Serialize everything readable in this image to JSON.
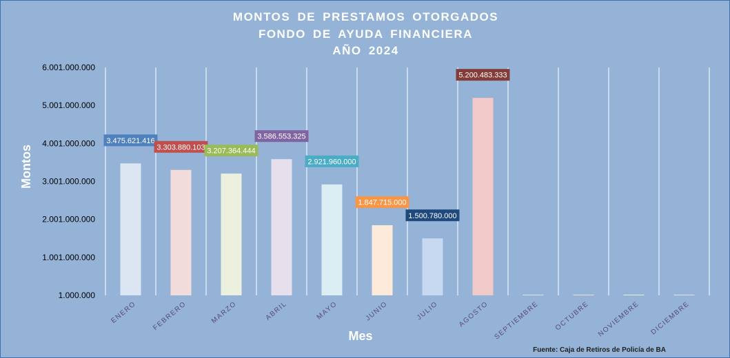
{
  "chart_data": {
    "type": "bar",
    "title_lines": [
      "MONTOS  DE  PRESTAMOS  OTORGADOS",
      "FONDO DE AYUDA FINANCIERA",
      "AÑO  2024"
    ],
    "xlabel": "Mes",
    "ylabel": "Montos",
    "source": "Fuente: Caja de Retiros de Policía de BA",
    "ylim": [
      1000000,
      6001000000
    ],
    "yticks": [
      1000000,
      1001000000,
      2001000000,
      3001000000,
      4001000000,
      5001000000,
      6001000000
    ],
    "ytick_labels": [
      "1.000.000",
      "1.001.000.000",
      "2.001.000.000",
      "3.001.000.000",
      "4.001.000.000",
      "5.001.000.000",
      "6.001.000.000"
    ],
    "categories": [
      "ENERO",
      "FEBRERO",
      "MARZO",
      "ABRIL",
      "MAYO",
      "JUNIO",
      "JULIO",
      "AGOSTO",
      "SEPTIEMBRE",
      "OCTUBRE",
      "NOVIEMBRE",
      "DICIEMBRE"
    ],
    "values": [
      3475621416,
      3303880103,
      3207364444,
      3586553325,
      2921960000,
      1847715000,
      1500780000,
      5200483333,
      0,
      0,
      0,
      0
    ],
    "value_labels": [
      "3.475.621.416",
      "3.303.880.103",
      "3.207.364.444",
      "3.586.553.325",
      "2.921.960.000",
      "1.847.715.000",
      "1.500.780.000",
      "5.200.483.333",
      "",
      "",
      "",
      ""
    ],
    "bar_colors": [
      "#dce6f2",
      "#f2dcdb",
      "#ebf1de",
      "#e6e0ec",
      "#dbeef4",
      "#fdeada",
      "#c6d9f1",
      "#f2c9c9",
      "#dce6f2",
      "#f2dcdb",
      "#ebf1de",
      "#e6e0ec"
    ],
    "label_colors": [
      "#4f81bd",
      "#c0504d",
      "#9bbb59",
      "#8064a2",
      "#4bacc6",
      "#f79646",
      "#1f497d",
      "#843c39",
      "",
      "",
      "",
      ""
    ],
    "grid": "vertical",
    "legend": "none"
  }
}
